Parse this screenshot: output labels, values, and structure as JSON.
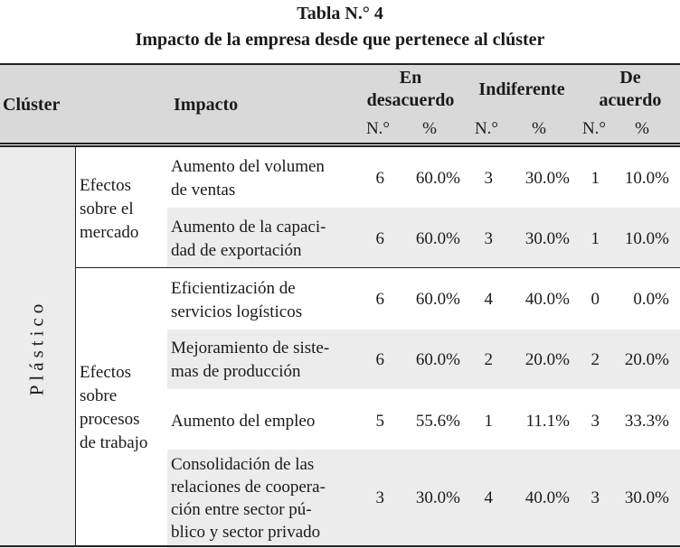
{
  "caption": {
    "title": "Tabla N.° 4",
    "subtitle": "Impacto de la empresa desde que pertenece al clúster"
  },
  "header": {
    "cluster": "Clúster",
    "impacto": "Impacto",
    "groups": [
      {
        "lines": [
          "En",
          "desacuerdo"
        ],
        "n": "N.°",
        "pct": "%"
      },
      {
        "lines": [
          "Indiferente"
        ],
        "n": "N.°",
        "pct": "%"
      },
      {
        "lines": [
          "De",
          "acuerdo"
        ],
        "n": "N.°",
        "pct": "%"
      }
    ]
  },
  "cluster_name": "Plástico",
  "sections": [
    {
      "label_lines": [
        "Efectos",
        "sobre el",
        "mercado"
      ]
    },
    {
      "label_lines": [
        "Efectos",
        "sobre",
        "procesos",
        "de trabajo"
      ]
    }
  ],
  "rows": [
    {
      "impact": [
        "Aumento del volumen",
        "de ventas"
      ],
      "values": [
        "6",
        "60.0%",
        "3",
        "30.0%",
        "1",
        "10.0%"
      ]
    },
    {
      "impact": [
        "Aumento de la capaci-",
        "dad de exportación"
      ],
      "values": [
        "6",
        "60.0%",
        "3",
        "30.0%",
        "1",
        "10.0%"
      ]
    },
    {
      "impact": [
        "Eficientización de",
        "servicios logísticos"
      ],
      "values": [
        "6",
        "60.0%",
        "4",
        "40.0%",
        "0",
        "0.0%"
      ]
    },
    {
      "impact": [
        "Mejoramiento de siste-",
        "mas de producción"
      ],
      "values": [
        "6",
        "60.0%",
        "2",
        "20.0%",
        "2",
        "20.0%"
      ]
    },
    {
      "impact": [
        "Aumento del empleo"
      ],
      "values": [
        "5",
        "55.6%",
        "1",
        "11.1%",
        "3",
        "33.3%"
      ]
    },
    {
      "impact": [
        "Consolidación de las",
        "relaciones de coopera-",
        "ción entre sector pú-",
        "blico y sector privado"
      ],
      "values": [
        "3",
        "30.0%",
        "4",
        "40.0%",
        "3",
        "30.0%"
      ]
    }
  ]
}
